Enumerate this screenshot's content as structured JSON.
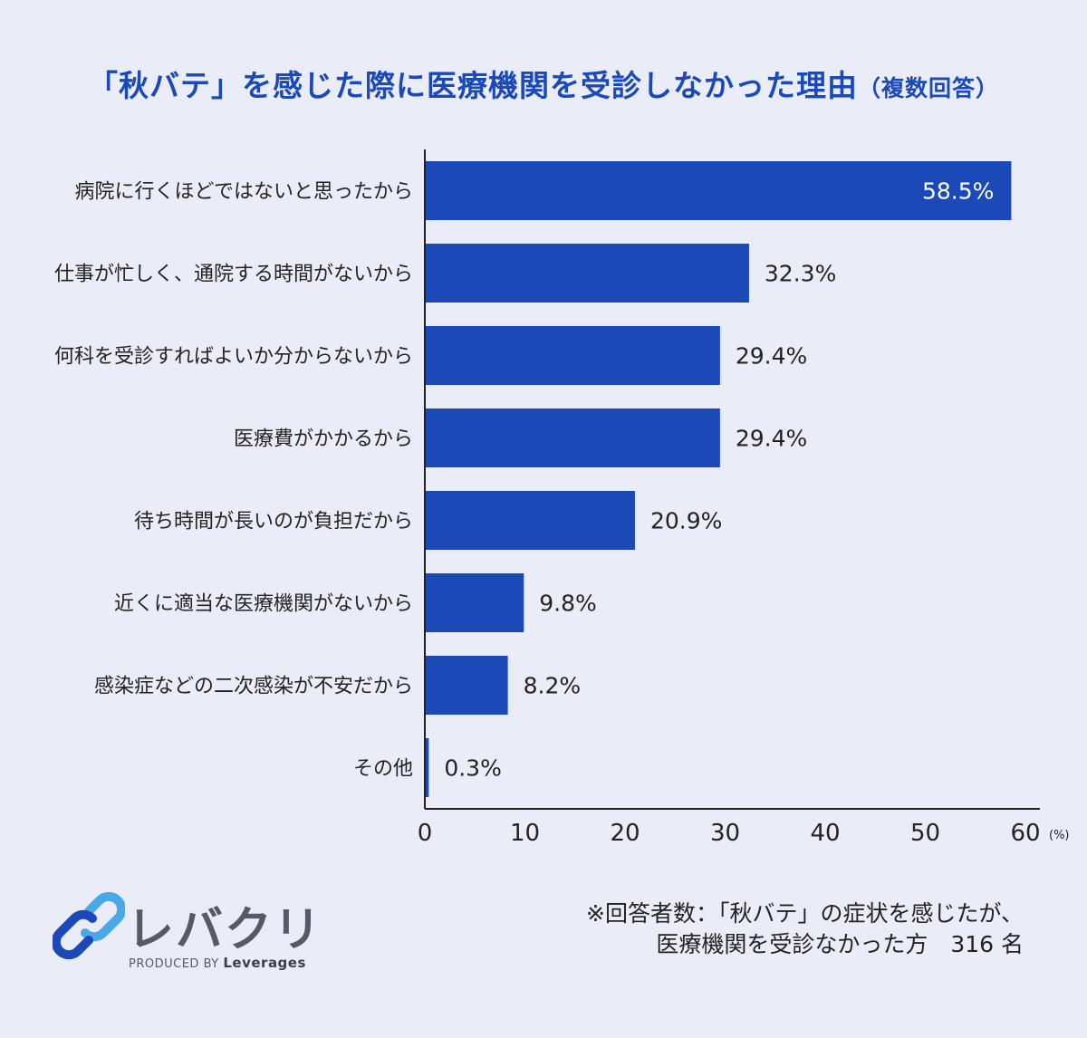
{
  "title": {
    "main": "「秋バテ」を感じた際に医療機関を受診しなかった理由",
    "sub": "（複数回答）"
  },
  "chart_data": {
    "type": "bar",
    "orientation": "horizontal",
    "categories": [
      "病院に行くほどではないと思ったから",
      "仕事が忙しく、通院する時間がないから",
      "何科を受診すればよいか分からないから",
      "医療費がかかるから",
      "待ち時間が長いのが負担だから",
      "近くに適当な医療機関がないから",
      "感染症などの二次感染が不安だから",
      "その他"
    ],
    "values": [
      58.5,
      32.3,
      29.4,
      29.4,
      20.9,
      9.8,
      8.2,
      0.3
    ],
    "value_labels": [
      "58.5%",
      "32.3%",
      "29.4%",
      "29.4%",
      "20.9%",
      "9.8%",
      "8.2%",
      "0.3%"
    ],
    "xlim": [
      0,
      60
    ],
    "xticks": [
      0,
      10,
      20,
      30,
      40,
      50,
      60
    ],
    "xunit": "(%)",
    "bar_color": "#1b49b8",
    "grid": false
  },
  "footnote": {
    "line1": "※回答者数：「秋バテ」の症状を感じたが、",
    "line2": "医療機関を受診なかった方　316 名"
  },
  "logo": {
    "name": "レバクリ",
    "produced_by": "PRODUCED BY",
    "company": "Leverages",
    "icon": "chain-link-icon",
    "colors": [
      "#1b49b8",
      "#49a9e8"
    ]
  }
}
